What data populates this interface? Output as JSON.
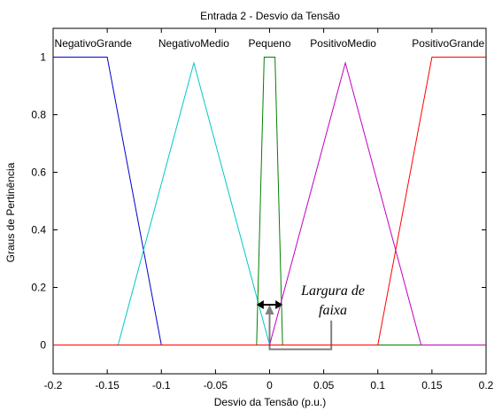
{
  "chart_data": {
    "type": "line",
    "title": "Entrada 2 - Desvio da Tensão",
    "xlabel": "Desvio da Tensão (p.u.)",
    "ylabel": "Graus de Pertinência",
    "xlim": [
      -0.2,
      0.2
    ],
    "ylim": [
      -0.1,
      1.1
    ],
    "xticks": [
      -0.2,
      -0.15,
      -0.1,
      -0.05,
      0,
      0.05,
      0.1,
      0.15,
      0.2
    ],
    "xtick_labels": [
      "-0.2",
      "-0.15",
      "-0.1",
      "-0.05",
      "0",
      "0.05",
      "0.1",
      "0.15",
      "0.2"
    ],
    "yticks": [
      0,
      0.2,
      0.4,
      0.6,
      0.8,
      1
    ],
    "ytick_labels": [
      "0",
      "0.2",
      "0.4",
      "0.6",
      "0.8",
      "1"
    ],
    "grid": false,
    "legend": "none",
    "series": [
      {
        "name": "NegativoGrande",
        "color": "#0000cc",
        "x": [
          -0.2,
          -0.15,
          -0.1,
          0.2
        ],
        "y": [
          1,
          1,
          0,
          0
        ]
      },
      {
        "name": "NegativoMedio",
        "color": "#00c8c8",
        "x": [
          -0.2,
          -0.14,
          -0.07,
          0.0,
          0.2
        ],
        "y": [
          0,
          0,
          0.98,
          0,
          0
        ]
      },
      {
        "name": "Pequeno",
        "color": "#008000",
        "x": [
          -0.2,
          -0.012,
          -0.005,
          0.005,
          0.012,
          0.2
        ],
        "y": [
          0,
          0,
          1,
          1,
          0,
          0
        ]
      },
      {
        "name": "PositivoMedio",
        "color": "#c000c0",
        "x": [
          -0.2,
          0.0,
          0.07,
          0.14,
          0.2
        ],
        "y": [
          0,
          0,
          0.98,
          0,
          0
        ]
      },
      {
        "name": "PositivoGrande",
        "color": "#ff0000",
        "x": [
          -0.2,
          0.1,
          0.15,
          0.2
        ],
        "y": [
          0,
          0,
          1,
          1
        ]
      }
    ],
    "annotations": {
      "largura_line1": "Largura de",
      "largura_line2": "faixa",
      "band_x": [
        -0.012,
        0.012
      ],
      "band_y": 0.14,
      "pointer_x": 0.0,
      "pointer_y_from": -0.015,
      "pointer_y_to": 0.14,
      "callout_x": 0.057,
      "callout_y_top": 0.085
    },
    "mf_label_positions": [
      {
        "text": "NegativoGrande",
        "x": -0.163
      },
      {
        "text": "NegativoMedio",
        "x": -0.07
      },
      {
        "text": "Pequeno",
        "x": 0.0
      },
      {
        "text": "PositivoMedio",
        "x": 0.068
      },
      {
        "text": "PositivoGrande",
        "x": 0.165
      }
    ]
  }
}
